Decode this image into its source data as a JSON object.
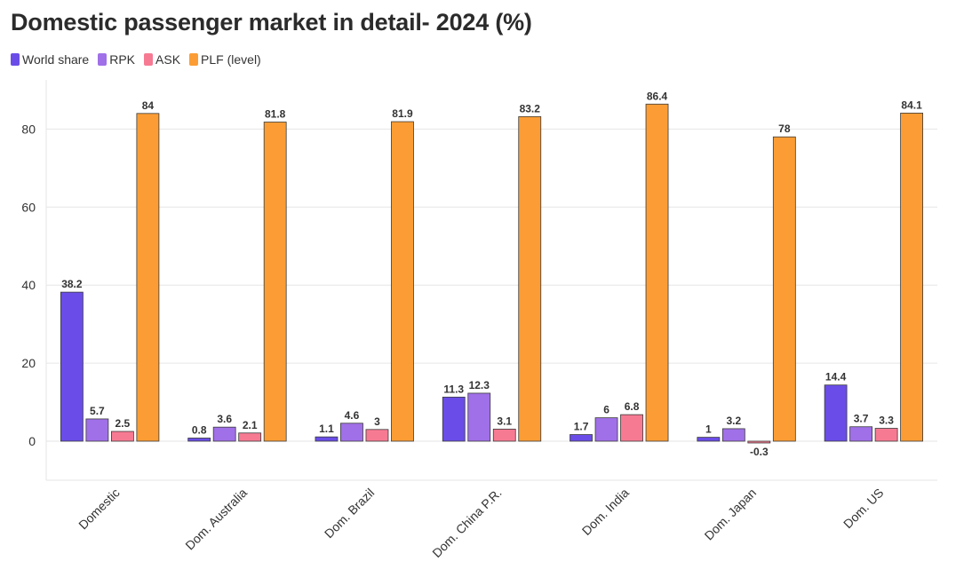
{
  "chart_data": {
    "type": "bar",
    "title": "Domestic passenger market in detail- 2024 (%)",
    "categories": [
      "Domestic",
      "Dom. Australia",
      "Dom. Brazil",
      "Dom. China P.R.",
      "Dom. India",
      "Dom. Japan",
      "Dom. US"
    ],
    "series": [
      {
        "name": "World share",
        "color": "#6a4de8",
        "values": [
          38.2,
          0.8,
          1.1,
          11.3,
          1.7,
          1,
          14.4
        ]
      },
      {
        "name": "RPK",
        "color": "#a070e8",
        "values": [
          5.7,
          3.6,
          4.6,
          12.3,
          6,
          3.2,
          3.7
        ]
      },
      {
        "name": "ASK",
        "color": "#f77a93",
        "values": [
          2.5,
          2.1,
          3,
          3.1,
          6.8,
          -0.3,
          3.3
        ]
      },
      {
        "name": "PLF (level)",
        "color": "#fb9d34",
        "values": [
          84,
          81.8,
          81.9,
          83.2,
          86.4,
          78,
          84.1
        ]
      }
    ],
    "ylim": [
      -10,
      90
    ],
    "yticks": [
      0,
      20,
      40,
      60,
      80
    ],
    "xlabel": "",
    "ylabel": "",
    "grid": true,
    "legend": "top-left"
  }
}
